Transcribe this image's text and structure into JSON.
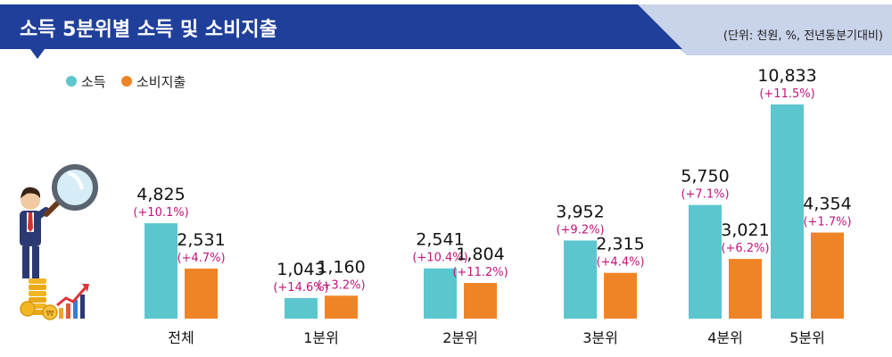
{
  "header": {
    "title": "소득 5분위별 소득 및 소비지출",
    "unit_note": "(단위: 천원, %, 전년동분기대비)"
  },
  "colors": {
    "header_blue": "#1f3f9a",
    "header_shadow": "#c9d3ea",
    "income": "#5cc6cf",
    "expense": "#ef8427",
    "change_text": "#c0147a"
  },
  "icons": [
    "businessman-magnifier-icon",
    "coins-growth-arrow-icon"
  ],
  "chart_data": {
    "type": "bar",
    "categories": [
      "전체",
      "1분위",
      "2분위",
      "3분위",
      "4분위",
      "5분위"
    ],
    "series": [
      {
        "name": "소득",
        "values": [
          4825,
          1043,
          2541,
          3952,
          5750,
          10833
        ],
        "value_labels": [
          "4,825",
          "1,043",
          "2,541",
          "3,952",
          "5,750",
          "10,833"
        ],
        "change_labels": [
          "(+10.1%)",
          "(+14.6%)",
          "(+10.4%)",
          "(+9.2%)",
          "(+7.1%)",
          "(+11.5%)"
        ]
      },
      {
        "name": "소비지출",
        "values": [
          2531,
          1160,
          1804,
          2315,
          3021,
          4354
        ],
        "value_labels": [
          "2,531",
          "1,160",
          "1,804",
          "2,315",
          "3,021",
          "4,354"
        ],
        "change_labels": [
          "(+4.7%)",
          "(+3.2%)",
          "(+11.2%)",
          "(+4.4%)",
          "(+6.2%)",
          "(+1.7%)"
        ]
      }
    ],
    "legend_position": "top-left",
    "grid": false
  }
}
